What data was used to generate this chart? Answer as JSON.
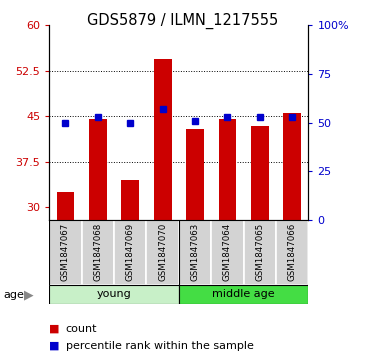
{
  "title": "GDS5879 / ILMN_1217555",
  "samples": [
    "GSM1847067",
    "GSM1847068",
    "GSM1847069",
    "GSM1847070",
    "GSM1847063",
    "GSM1847064",
    "GSM1847065",
    "GSM1847066"
  ],
  "group_labels": [
    "young",
    "middle age"
  ],
  "young_color": "#c8f0c8",
  "middle_color": "#44dd44",
  "bar_values": [
    32.5,
    44.5,
    34.5,
    54.5,
    43.0,
    44.5,
    43.5,
    45.5
  ],
  "percentile_values": [
    50,
    53,
    50,
    57,
    51,
    53,
    53,
    53
  ],
  "bar_color": "#cc0000",
  "dot_color": "#0000cc",
  "ylim_left": [
    28,
    60
  ],
  "ylim_right": [
    0,
    100
  ],
  "yticks_left": [
    30,
    37.5,
    45,
    52.5,
    60
  ],
  "ytick_labels_left": [
    "30",
    "37.5",
    "45",
    "52.5",
    "60"
  ],
  "yticks_right": [
    0,
    25,
    50,
    75,
    100
  ],
  "ytick_labels_right": [
    "0",
    "25",
    "50",
    "75",
    "100%"
  ],
  "grid_values": [
    37.5,
    45,
    52.5
  ],
  "bar_bottom": 28,
  "legend_bar_label": "count",
  "legend_dot_label": "percentile rank within the sample",
  "bg_color": "#ffffff",
  "plot_bg": "#ffffff",
  "label_bg": "#d3d3d3"
}
